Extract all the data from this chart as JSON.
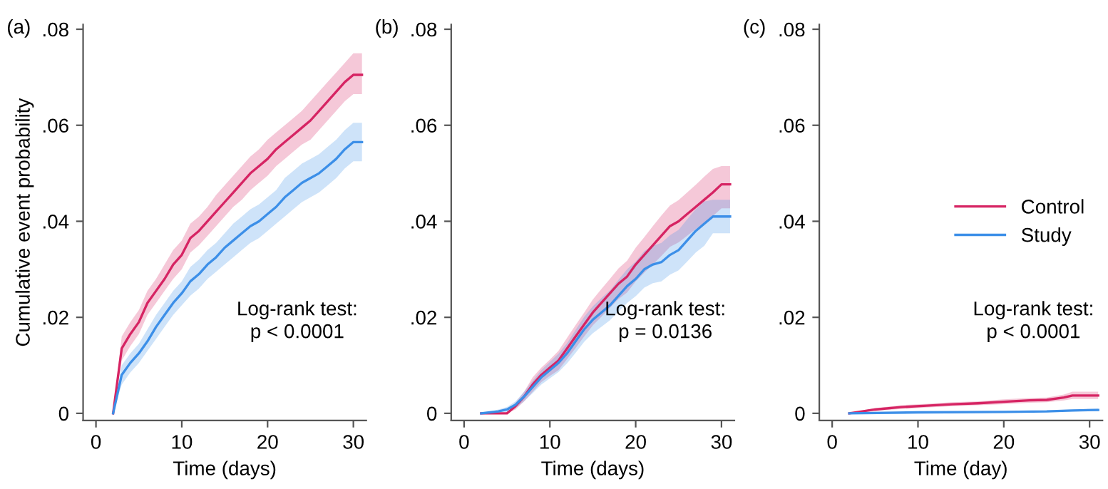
{
  "chart_data": [
    {
      "type": "line",
      "title": "(a)",
      "xlabel": "Time (days)",
      "ylabel": "Cumulative event probability",
      "annotations": [
        "Log-rank test:\np < 0.0001"
      ],
      "x": [
        2,
        3,
        4,
        5,
        6,
        7,
        8,
        9,
        10,
        11,
        12,
        13,
        14,
        15,
        16,
        17,
        18,
        19,
        20,
        21,
        22,
        23,
        24,
        25,
        26,
        27,
        28,
        29,
        30,
        31
      ],
      "series": [
        {
          "color": "#d62463",
          "values": [
            0,
            0.0135,
            0.0165,
            0.019,
            0.023,
            0.0255,
            0.028,
            0.031,
            0.033,
            0.0365,
            0.038,
            0.04,
            0.042,
            0.044,
            0.046,
            0.048,
            0.05,
            0.0515,
            0.053,
            0.055,
            0.0565,
            0.058,
            0.0595,
            0.061,
            0.063,
            0.065,
            0.067,
            0.069,
            0.0705,
            0.0705
          ],
          "lower": [
            0,
            0.011,
            0.014,
            0.0165,
            0.0205,
            0.023,
            0.0255,
            0.028,
            0.03,
            0.0335,
            0.035,
            0.037,
            0.039,
            0.041,
            0.043,
            0.0445,
            0.0465,
            0.048,
            0.0495,
            0.0515,
            0.053,
            0.0545,
            0.056,
            0.057,
            0.059,
            0.061,
            0.063,
            0.065,
            0.0665,
            0.0665
          ],
          "upper": [
            0,
            0.016,
            0.019,
            0.0215,
            0.0255,
            0.028,
            0.031,
            0.034,
            0.036,
            0.0395,
            0.041,
            0.043,
            0.0455,
            0.0475,
            0.0495,
            0.0515,
            0.0535,
            0.055,
            0.057,
            0.0585,
            0.06,
            0.0615,
            0.063,
            0.065,
            0.067,
            0.069,
            0.071,
            0.073,
            0.075,
            0.075
          ]
        },
        {
          "color": "#3c8fe8",
          "values": [
            0,
            0.008,
            0.0105,
            0.0125,
            0.015,
            0.018,
            0.0205,
            0.023,
            0.025,
            0.0275,
            0.029,
            0.031,
            0.0325,
            0.0345,
            0.036,
            0.0375,
            0.039,
            0.04,
            0.0415,
            0.043,
            0.045,
            0.0465,
            0.048,
            0.049,
            0.05,
            0.0515,
            0.053,
            0.055,
            0.0565,
            0.0565
          ],
          "lower": [
            0,
            0.006,
            0.0085,
            0.0105,
            0.013,
            0.0155,
            0.018,
            0.0205,
            0.0225,
            0.0245,
            0.026,
            0.028,
            0.0295,
            0.031,
            0.0325,
            0.034,
            0.0355,
            0.0365,
            0.038,
            0.0395,
            0.041,
            0.0425,
            0.044,
            0.045,
            0.046,
            0.0475,
            0.049,
            0.051,
            0.0525,
            0.0525
          ],
          "upper": [
            0,
            0.01,
            0.0125,
            0.0145,
            0.0175,
            0.0205,
            0.023,
            0.0255,
            0.0275,
            0.0305,
            0.032,
            0.034,
            0.0355,
            0.0375,
            0.0395,
            0.041,
            0.0425,
            0.0435,
            0.045,
            0.0465,
            0.049,
            0.0505,
            0.052,
            0.053,
            0.054,
            0.0555,
            0.057,
            0.059,
            0.0605,
            0.0605
          ]
        }
      ],
      "xlim": [
        -1.5,
        31.5
      ],
      "xticks": [
        0,
        10,
        20,
        30
      ],
      "ylim": [
        -0.0015,
        0.081
      ],
      "yticks": [
        0,
        {
          "value": 0.02,
          "label": ".02"
        },
        {
          "value": 0.04,
          "label": ".04"
        },
        {
          "value": 0.06,
          "label": ".06"
        },
        {
          "value": 0.08,
          "label": ".08"
        }
      ],
      "grid": false,
      "legend": false
    },
    {
      "type": "line",
      "title": "(b)",
      "xlabel": "Time (days)",
      "annotations": [
        "Log-rank test:\np = 0.0136"
      ],
      "x": [
        2,
        3,
        4,
        5,
        6,
        7,
        8,
        9,
        10,
        11,
        12,
        13,
        14,
        15,
        16,
        17,
        18,
        19,
        20,
        21,
        22,
        23,
        24,
        25,
        26,
        27,
        28,
        29,
        30,
        31
      ],
      "series": [
        {
          "color": "#d62463",
          "values": [
            0,
            0,
            0,
            0,
            0.0015,
            0.0035,
            0.006,
            0.008,
            0.0095,
            0.011,
            0.0135,
            0.016,
            0.0185,
            0.021,
            0.023,
            0.025,
            0.027,
            0.0285,
            0.031,
            0.033,
            0.035,
            0.037,
            0.039,
            0.04,
            0.0415,
            0.043,
            0.0445,
            0.046,
            0.0477,
            0.0477
          ],
          "lower": [
            0,
            0,
            0,
            0,
            0.0008,
            0.0025,
            0.0045,
            0.0065,
            0.0078,
            0.009,
            0.0113,
            0.0136,
            0.016,
            0.0183,
            0.0201,
            0.022,
            0.0238,
            0.0252,
            0.0275,
            0.0293,
            0.031,
            0.0328,
            0.0347,
            0.0356,
            0.037,
            0.0384,
            0.0397,
            0.0411,
            0.0427,
            0.0427
          ],
          "upper": [
            0,
            0,
            0,
            0,
            0.0022,
            0.0045,
            0.0075,
            0.0095,
            0.0112,
            0.013,
            0.0157,
            0.0184,
            0.021,
            0.0237,
            0.0259,
            0.028,
            0.0302,
            0.0318,
            0.0345,
            0.0367,
            0.039,
            0.0412,
            0.0433,
            0.0444,
            0.046,
            0.0476,
            0.0493,
            0.0509,
            0.0515,
            0.0515
          ]
        },
        {
          "color": "#3c8fe8",
          "values": [
            0,
            0.0002,
            0.0004,
            0.0008,
            0.0018,
            0.0035,
            0.0055,
            0.0075,
            0.009,
            0.0105,
            0.0125,
            0.015,
            0.0175,
            0.0195,
            0.021,
            0.0225,
            0.0245,
            0.0265,
            0.028,
            0.03,
            0.031,
            0.0315,
            0.033,
            0.034,
            0.036,
            0.038,
            0.0395,
            0.041,
            0.041,
            0.041
          ],
          "lower": [
            0,
            0,
            0.0001,
            0.0003,
            0.0011,
            0.0025,
            0.0042,
            0.006,
            0.0073,
            0.0086,
            0.0104,
            0.0126,
            0.0149,
            0.0167,
            0.018,
            0.0194,
            0.0212,
            0.023,
            0.0244,
            0.0262,
            0.0271,
            0.0275,
            0.0289,
            0.0298,
            0.0316,
            0.0335,
            0.0349,
            0.0375,
            0.0375,
            0.0375
          ],
          "upper": [
            0,
            0.0004,
            0.0008,
            0.0013,
            0.0025,
            0.0045,
            0.0068,
            0.009,
            0.0107,
            0.0124,
            0.0146,
            0.0174,
            0.0201,
            0.0223,
            0.024,
            0.0256,
            0.0278,
            0.03,
            0.0316,
            0.0338,
            0.0349,
            0.0355,
            0.0371,
            0.0382,
            0.0404,
            0.0425,
            0.0441,
            0.0445,
            0.0445,
            0.0445
          ]
        }
      ],
      "xlim": [
        -1.5,
        31.5
      ],
      "xticks": [
        0,
        10,
        20,
        30
      ],
      "ylim": [
        -0.0015,
        0.081
      ],
      "yticks": [
        0,
        {
          "value": 0.02,
          "label": ".02"
        },
        {
          "value": 0.04,
          "label": ".04"
        },
        {
          "value": 0.06,
          "label": ".06"
        },
        {
          "value": 0.08,
          "label": ".08"
        }
      ],
      "grid": false,
      "legend": false
    },
    {
      "type": "line",
      "title": "(c)",
      "xlabel": "Time (day)",
      "annotations": [
        "Log-rank test:\np < 0.0001"
      ],
      "series": [
        {
          "name": "Control",
          "color": "#d62463",
          "x": [
            2,
            5,
            8,
            11,
            14,
            17,
            20,
            23,
            25,
            27,
            28,
            31
          ],
          "values": [
            0,
            0.0008,
            0.0013,
            0.0016,
            0.0019,
            0.0021,
            0.0024,
            0.0027,
            0.0028,
            0.0033,
            0.0037,
            0.0037
          ],
          "lower": [
            0,
            0.0005,
            0.0009,
            0.0012,
            0.0015,
            0.0017,
            0.0019,
            0.0022,
            0.0023,
            0.0027,
            0.003,
            0.003
          ],
          "upper": [
            0,
            0.0011,
            0.0017,
            0.002,
            0.0023,
            0.0025,
            0.0029,
            0.0032,
            0.0033,
            0.0039,
            0.0045,
            0.0045
          ]
        },
        {
          "name": "Study",
          "color": "#3c8fe8",
          "x": [
            2,
            10,
            20,
            25,
            28,
            31
          ],
          "values": [
            0,
            0.0002,
            0.0003,
            0.0004,
            0.0006,
            0.0007
          ],
          "lower": [
            0,
            0.0001,
            0.0002,
            0.0003,
            0.0004,
            0.0005
          ],
          "upper": [
            0,
            0.0003,
            0.0005,
            0.0006,
            0.0008,
            0.001
          ]
        }
      ],
      "xlim": [
        -1.5,
        31.5
      ],
      "xticks": [
        0,
        10,
        20,
        30
      ],
      "ylim": [
        -0.0015,
        0.081
      ],
      "yticks": [
        0,
        {
          "value": 0.02,
          "label": ".02"
        },
        {
          "value": 0.04,
          "label": ".04"
        },
        {
          "value": 0.06,
          "label": ".06"
        },
        {
          "value": 0.08,
          "label": ".08"
        }
      ],
      "grid": false,
      "legend": "right"
    }
  ]
}
